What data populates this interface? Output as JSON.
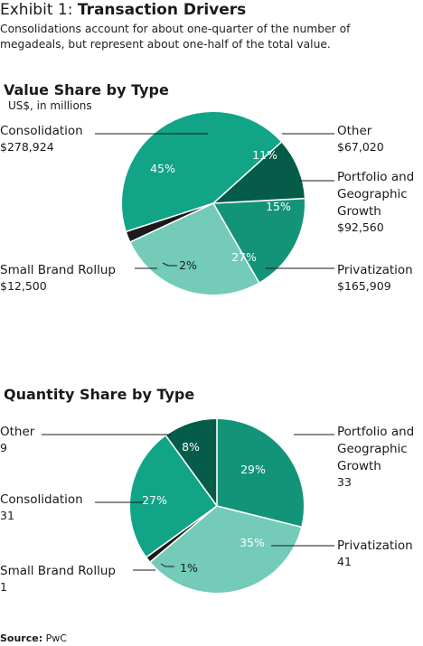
{
  "header": {
    "exhibit_prefix": "Exhibit 1: ",
    "exhibit_title": "Transaction Drivers",
    "subtitle_line1": "Consolidations account for about one-quarter of the number of",
    "subtitle_line2": "megadeals, but represent about one-half of the total value."
  },
  "source": {
    "label": "Source:",
    "text": " PwC"
  },
  "colors": {
    "Consolidation": "#11a487",
    "Other": "#045c49",
    "Portfolio and Geographic Growth": "#139478",
    "Privatization": "#73cbb8",
    "Small Brand Rollup": "#1a1a1a"
  },
  "chart_data": [
    {
      "type": "pie",
      "title": "Value Share by Type",
      "subtitle": "US$, in millions",
      "slices": [
        {
          "name": "Consolidation",
          "name_lines": [
            "Consolidation"
          ],
          "value_label": "$278,924",
          "value": 278924,
          "pct": 45,
          "pct_label": "45%"
        },
        {
          "name": "Other",
          "name_lines": [
            "Other"
          ],
          "value_label": "$67,020",
          "value": 67020,
          "pct": 11,
          "pct_label": "11%"
        },
        {
          "name": "Portfolio and Geographic Growth",
          "name_lines": [
            "Portfolio and",
            "Geographic",
            "Growth"
          ],
          "value_label": "$92,560",
          "value": 92560,
          "pct": 15,
          "pct_label": "15%"
        },
        {
          "name": "Privatization",
          "name_lines": [
            "Privatization"
          ],
          "value_label": "$165,909",
          "value": 165909,
          "pct": 27,
          "pct_label": "27%"
        },
        {
          "name": "Small Brand Rollup",
          "name_lines": [
            "Small Brand Rollup"
          ],
          "value_label": "$12,500",
          "value": 12500,
          "pct": 2,
          "pct_label": "2%"
        }
      ]
    },
    {
      "type": "pie",
      "title": "Quantity Share by Type",
      "slices": [
        {
          "name": "Consolidation",
          "name_lines": [
            "Consolidation"
          ],
          "value_label": "31",
          "value": 31,
          "pct": 27,
          "pct_label": "27%"
        },
        {
          "name": "Other",
          "name_lines": [
            "Other"
          ],
          "value_label": "9",
          "value": 9,
          "pct": 8,
          "pct_label": "8%"
        },
        {
          "name": "Portfolio and Geographic Growth",
          "name_lines": [
            "Portfolio and",
            "Geographic",
            "Growth"
          ],
          "value_label": "33",
          "value": 33,
          "pct": 29,
          "pct_label": "29%"
        },
        {
          "name": "Privatization",
          "name_lines": [
            "Privatization"
          ],
          "value_label": "41",
          "value": 41,
          "pct": 35,
          "pct_label": "35%"
        },
        {
          "name": "Small Brand Rollup",
          "name_lines": [
            "Small Brand Rollup"
          ],
          "value_label": "1",
          "value": 1,
          "pct": 1,
          "pct_label": "1%"
        }
      ]
    }
  ]
}
